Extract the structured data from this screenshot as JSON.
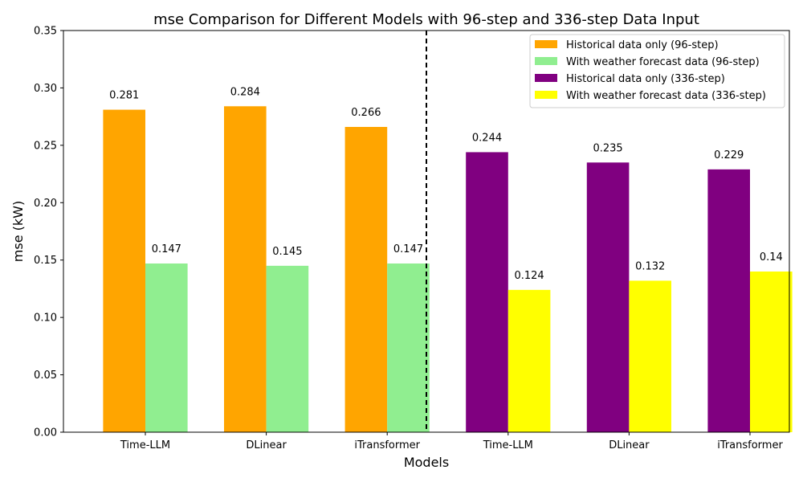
{
  "chart_data": {
    "type": "bar",
    "title": "mse Comparison for Different Models with 96-step and 336-step Data Input",
    "xlabel": "Models",
    "ylabel": "mse (kW)",
    "ylim": [
      0,
      0.35
    ],
    "yticks": [
      "0.00",
      "0.05",
      "0.10",
      "0.15",
      "0.20",
      "0.25",
      "0.30",
      "0.35"
    ],
    "categories": [
      "Time-LLM",
      "DLinear",
      "iTransformer",
      "Time-LLM",
      "DLinear",
      "iTransformer"
    ],
    "grid": false,
    "legend_position": "top-right",
    "divider": "dashed vertical line between the 96-step and 336-step groups",
    "series": [
      {
        "name": "Historical data only (96-step)",
        "color": "#ffa500",
        "offset": -1,
        "values": [
          0.281,
          0.284,
          0.266,
          null,
          null,
          null
        ],
        "labels": [
          "0.281",
          "0.284",
          "0.266",
          "",
          "",
          ""
        ]
      },
      {
        "name": "With weather forecast data (96-step)",
        "color": "#90ee90",
        "offset": 1,
        "values": [
          0.147,
          0.145,
          0.147,
          null,
          null,
          null
        ],
        "labels": [
          "0.147",
          "0.145",
          "0.147",
          "",
          "",
          ""
        ]
      },
      {
        "name": "Historical data only (336-step)",
        "color": "#800080",
        "offset": -1,
        "values": [
          null,
          null,
          null,
          0.244,
          0.235,
          0.229
        ],
        "labels": [
          "",
          "",
          "",
          "0.244",
          "0.235",
          "0.229"
        ]
      },
      {
        "name": "With weather forecast data (336-step)",
        "color": "#ffff00",
        "offset": 1,
        "values": [
          null,
          null,
          null,
          0.124,
          0.132,
          0.14
        ],
        "labels": [
          "",
          "",
          "",
          "0.124",
          "0.132",
          "0.14"
        ]
      }
    ]
  }
}
